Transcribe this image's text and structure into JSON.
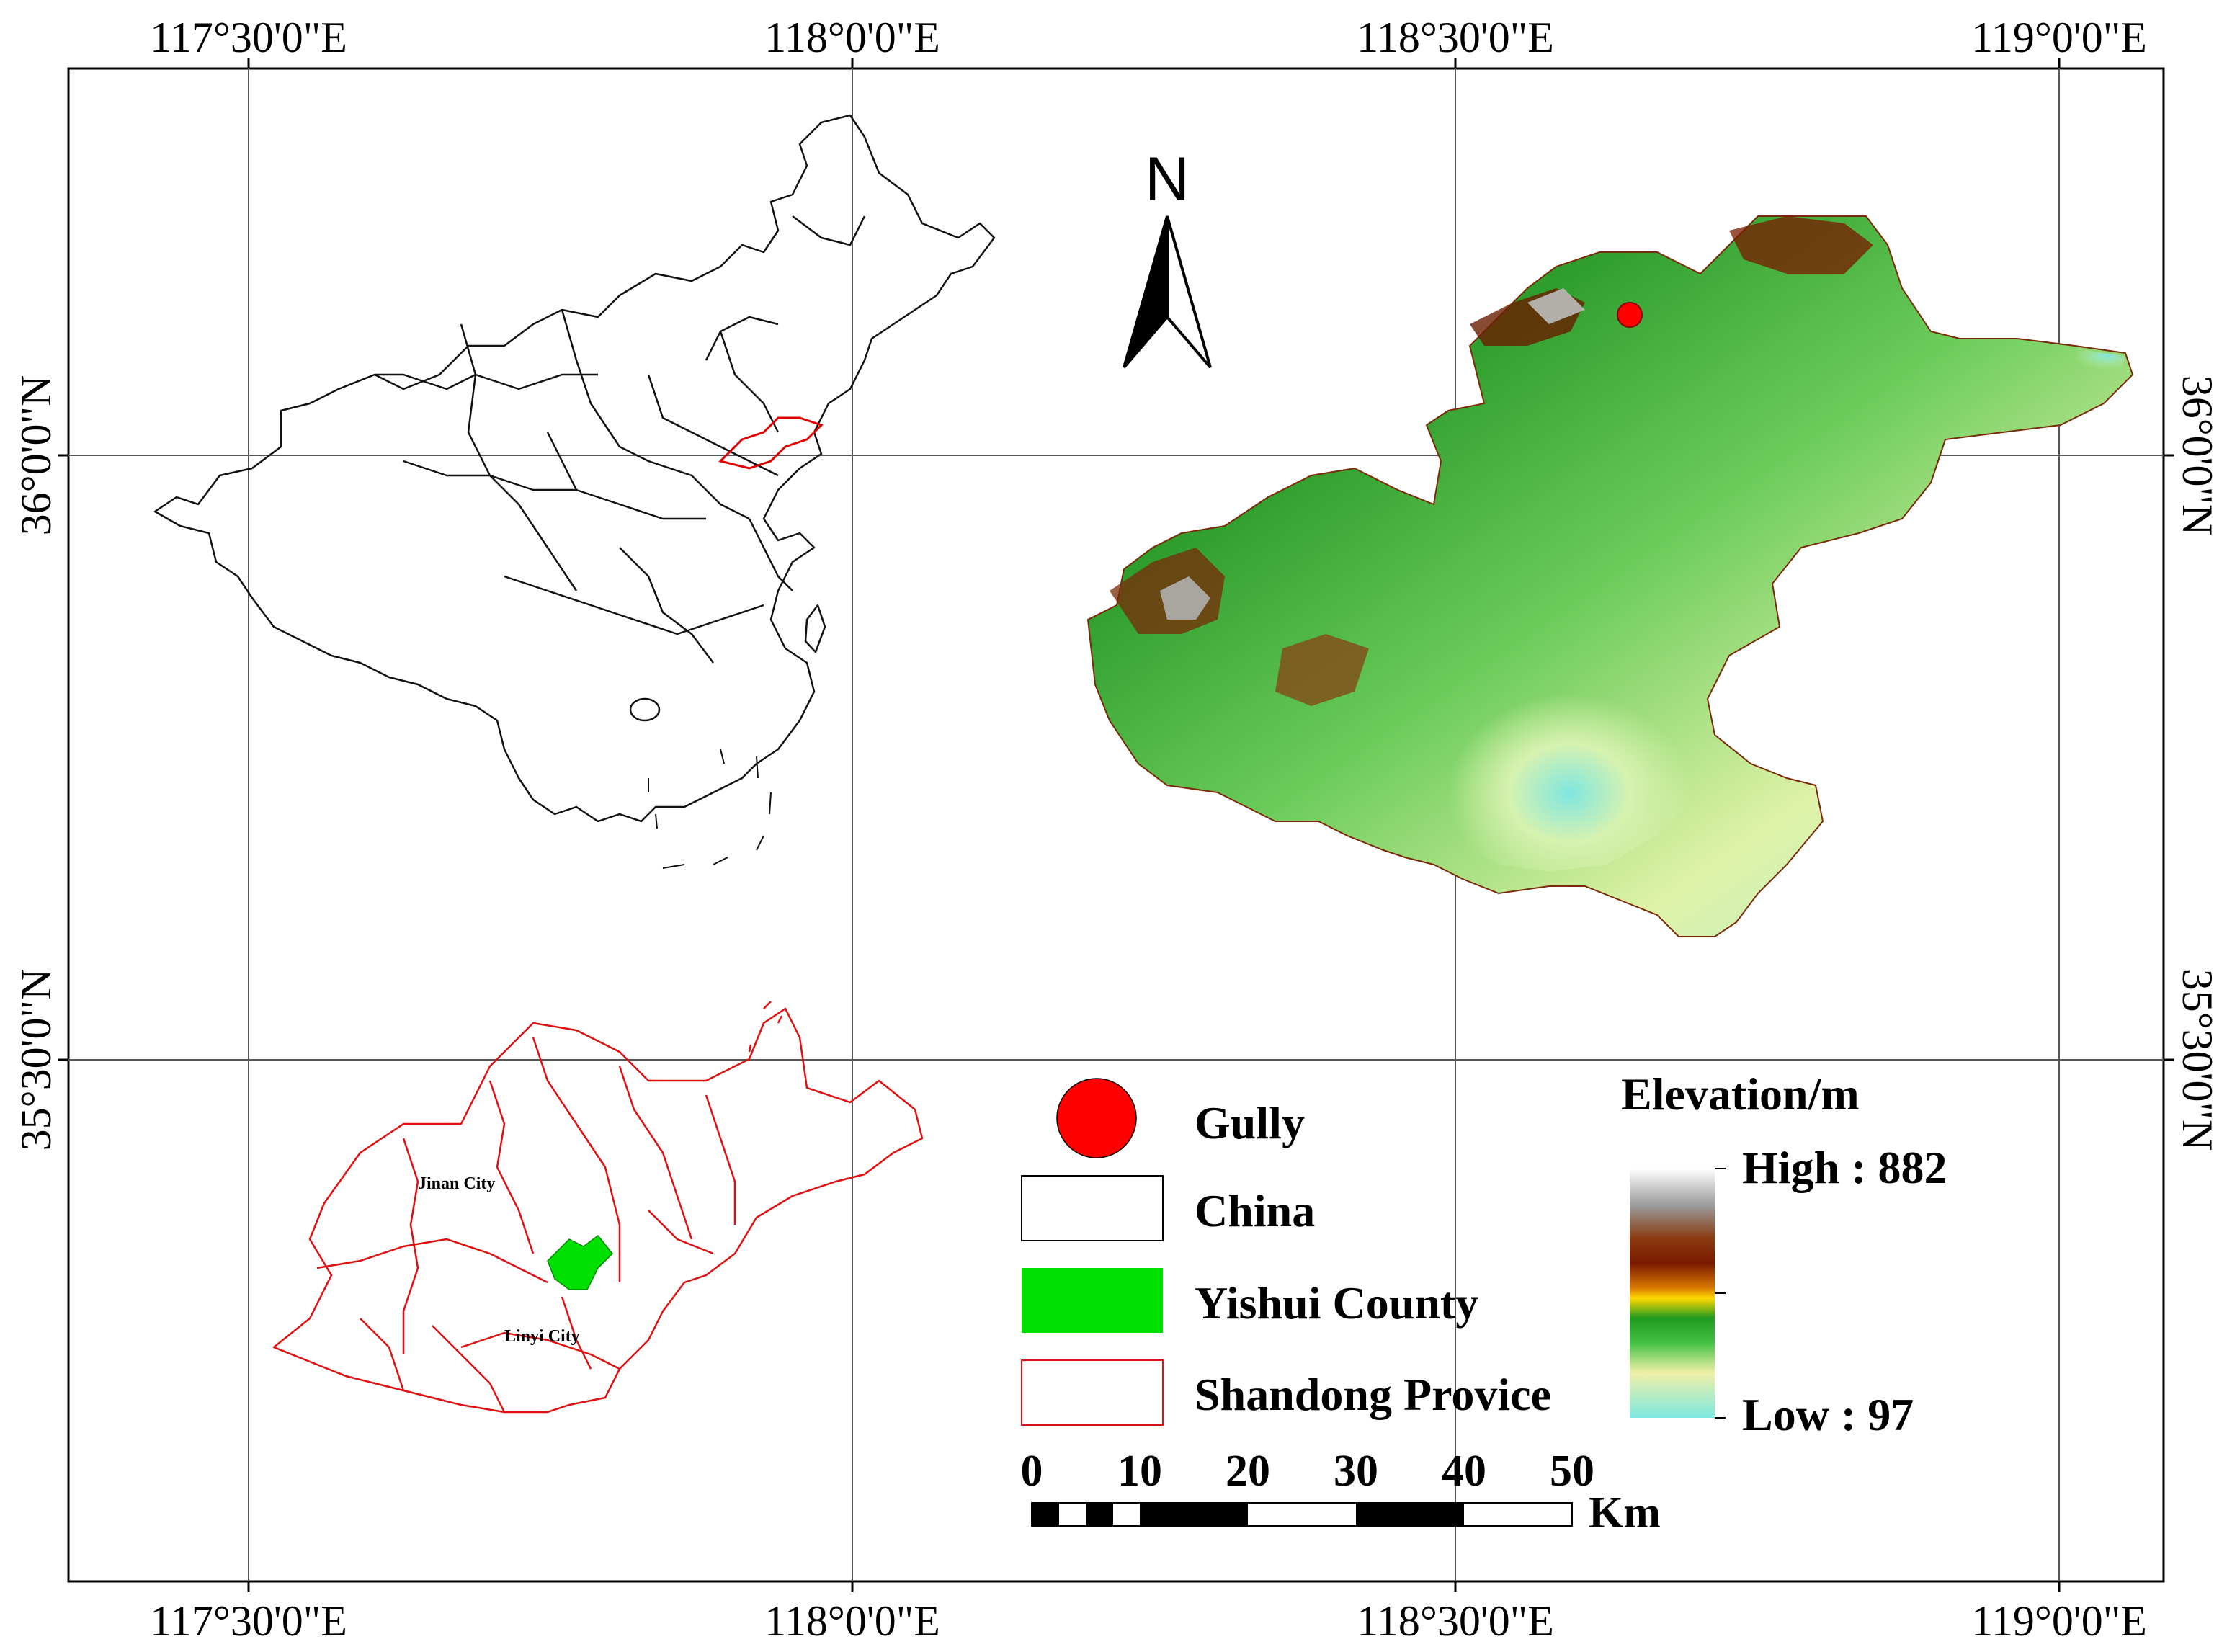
{
  "map": {
    "longitude_labels": [
      "117°30'0\"E",
      "118°0'0\"E",
      "118°30'0\"E",
      "119°0'0\"E"
    ],
    "latitude_labels": [
      "36°0'0\"N",
      "35°30'0\"N"
    ],
    "north_label": "N",
    "inset_labels": {
      "jinan": "Jinan City",
      "linyi": "Linyi City"
    }
  },
  "legend": {
    "items": [
      {
        "label": "Gully",
        "color": "#ff0000"
      },
      {
        "label": "China",
        "color": "#000000"
      },
      {
        "label": "Yishui County",
        "color": "#00e000"
      },
      {
        "label": "Shandong Provice",
        "color": "#dd1111"
      }
    ]
  },
  "elevation": {
    "title": "Elevation/m",
    "high_label": "High : 882",
    "low_label": "Low : 97",
    "high_value": 882,
    "low_value": 97
  },
  "scale_bar": {
    "ticks": [
      "0",
      "10",
      "20",
      "30",
      "40",
      "50"
    ],
    "unit": "Km"
  }
}
